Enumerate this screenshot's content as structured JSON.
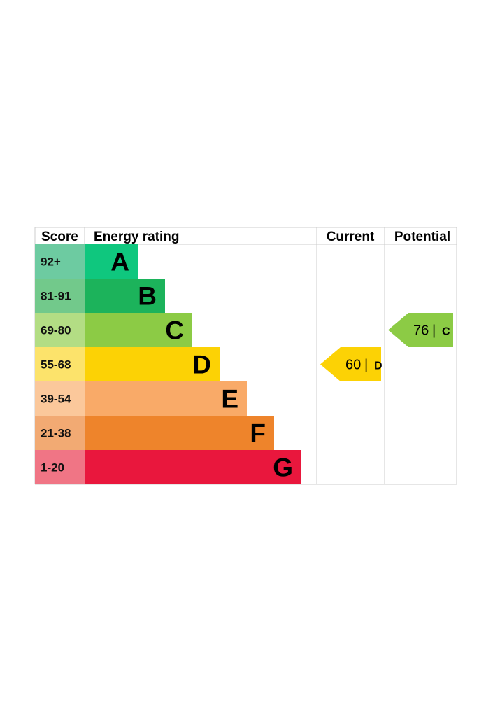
{
  "chart_data": {
    "type": "table",
    "headers": {
      "score": "Score",
      "energy_rating": "Energy rating",
      "current": "Current",
      "potential": "Potential"
    },
    "bands": [
      {
        "score": "92+",
        "letter": "A",
        "color": "#0fc77e",
        "score_color": "#6dcba1"
      },
      {
        "score": "81-91",
        "letter": "B",
        "color": "#1cb35b",
        "score_color": "#72c98b"
      },
      {
        "score": "69-80",
        "letter": "C",
        "color": "#8ccb45",
        "score_color": "#b3dd84"
      },
      {
        "score": "55-68",
        "letter": "D",
        "color": "#fcd205",
        "score_color": "#fce36b"
      },
      {
        "score": "39-54",
        "letter": "E",
        "color": "#f9aa68",
        "score_color": "#fbc89b"
      },
      {
        "score": "21-38",
        "letter": "F",
        "color": "#ee842b",
        "score_color": "#f2aa73"
      },
      {
        "score": "1-20",
        "letter": "G",
        "color": "#e9173d",
        "score_color": "#f07585"
      }
    ],
    "current": {
      "value": "60",
      "separator": "|",
      "letter": "D",
      "color": "#fcd205"
    },
    "potential": {
      "value": "76",
      "separator": "|",
      "letter": "C",
      "color": "#8ccb45"
    },
    "grid_color": "#cccccc"
  }
}
